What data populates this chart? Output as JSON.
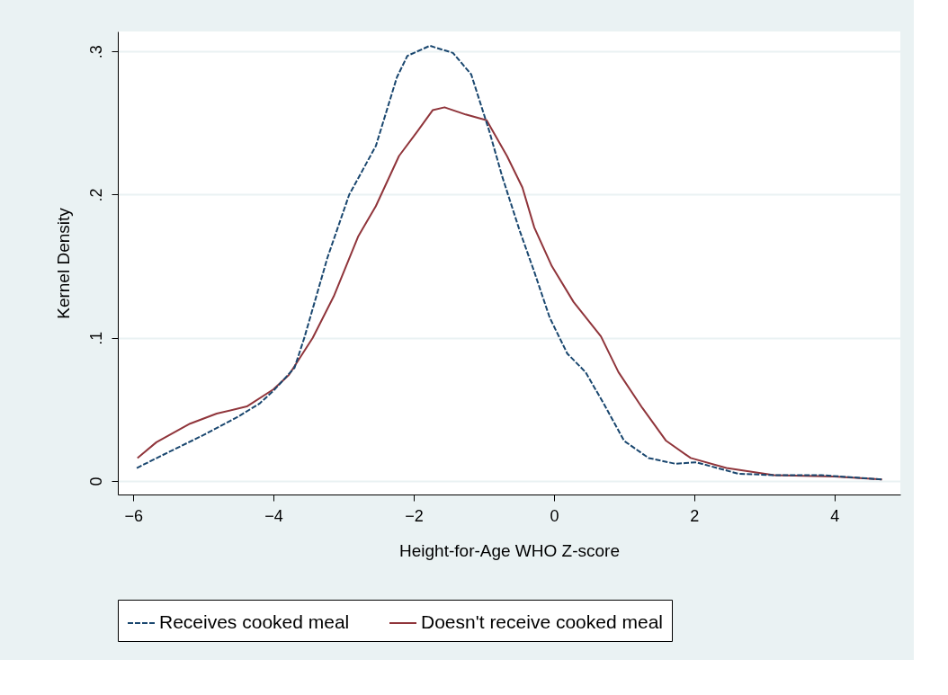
{
  "chart_data": {
    "type": "line",
    "xlabel": "Height-for-Age WHO Z-score",
    "ylabel": "Kernel Density",
    "xlim": [
      -6.22,
      4.94
    ],
    "ylim": [
      -0.0095,
      0.314
    ],
    "xticks": [
      -6,
      -4,
      -2,
      0,
      2,
      4
    ],
    "yticks": [
      {
        "value": 0,
        "label": "0"
      },
      {
        "value": 0.1,
        "label": ".1"
      },
      {
        "value": 0.2,
        "label": ".2"
      },
      {
        "value": 0.3,
        "label": ".3"
      }
    ],
    "grid": "y",
    "legend": "bottom",
    "series": [
      {
        "name": "Receives cooked meal",
        "color": "#1a476f",
        "line_style": "dashed",
        "x": [
          -5.95,
          -5.5,
          -5.0,
          -4.5,
          -4.2,
          -4.0,
          -3.7,
          -3.56,
          -3.23,
          -2.92,
          -2.54,
          -2.24,
          -2.09,
          -1.77,
          -1.44,
          -1.18,
          -0.92,
          -0.74,
          -0.49,
          -0.28,
          -0.06,
          0.19,
          0.45,
          0.71,
          1.0,
          1.35,
          1.73,
          2.03,
          2.63,
          3.14,
          3.82,
          4.68
        ],
        "values": [
          0.009,
          0.02,
          0.032,
          0.045,
          0.054,
          0.063,
          0.079,
          0.1,
          0.156,
          0.2,
          0.234,
          0.282,
          0.297,
          0.304,
          0.299,
          0.284,
          0.244,
          0.213,
          0.175,
          0.146,
          0.114,
          0.089,
          0.076,
          0.054,
          0.028,
          0.016,
          0.012,
          0.013,
          0.005,
          0.004,
          0.004,
          0.001
        ]
      },
      {
        "name": "Doesn't receive cooked meal",
        "color": "#90353b",
        "line_style": "solid",
        "x": [
          -5.94,
          -5.67,
          -5.19,
          -4.81,
          -4.38,
          -4.0,
          -3.78,
          -3.44,
          -3.14,
          -2.79,
          -2.54,
          -2.21,
          -1.95,
          -1.73,
          -1.56,
          -1.26,
          -0.96,
          -0.67,
          -0.45,
          -0.28,
          -0.03,
          0.28,
          0.67,
          0.92,
          1.26,
          1.6,
          1.95,
          2.46,
          3.14,
          4.0,
          4.68
        ],
        "values": [
          0.016,
          0.027,
          0.04,
          0.047,
          0.052,
          0.064,
          0.074,
          0.1,
          0.129,
          0.171,
          0.192,
          0.227,
          0.244,
          0.259,
          0.261,
          0.256,
          0.252,
          0.227,
          0.205,
          0.177,
          0.15,
          0.125,
          0.101,
          0.076,
          0.051,
          0.028,
          0.016,
          0.009,
          0.004,
          0.003,
          0.001
        ]
      }
    ]
  }
}
